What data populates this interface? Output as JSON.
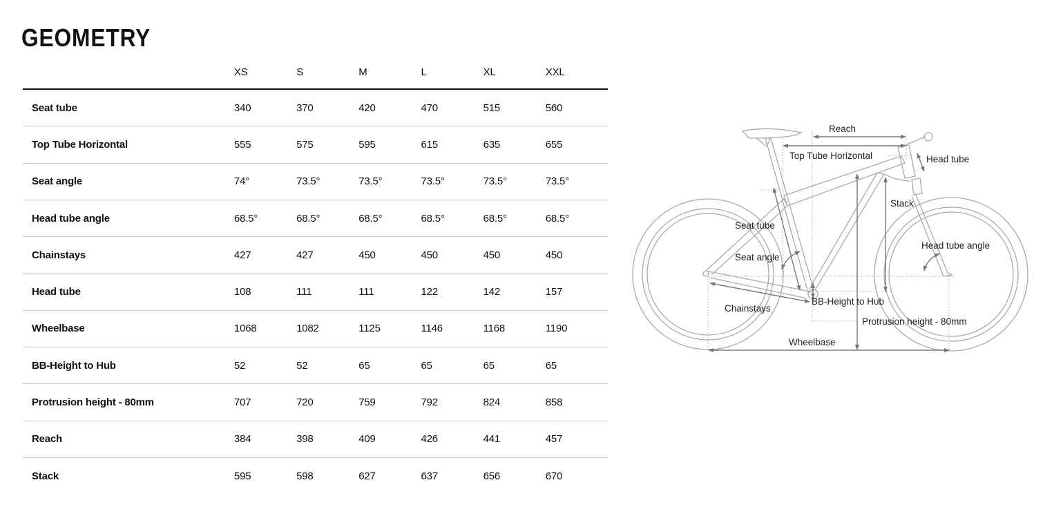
{
  "title": "GEOMETRY",
  "sizes": [
    "XS",
    "S",
    "M",
    "L",
    "XL",
    "XXL"
  ],
  "rows": [
    {
      "label": "Seat tube",
      "values": [
        "340",
        "370",
        "420",
        "470",
        "515",
        "560"
      ]
    },
    {
      "label": "Top Tube Horizontal",
      "values": [
        "555",
        "575",
        "595",
        "615",
        "635",
        "655"
      ]
    },
    {
      "label": "Seat angle",
      "values": [
        "74°",
        "73.5°",
        "73.5°",
        "73.5°",
        "73.5°",
        "73.5°"
      ]
    },
    {
      "label": "Head tube angle",
      "values": [
        "68.5°",
        "68.5°",
        "68.5°",
        "68.5°",
        "68.5°",
        "68.5°"
      ]
    },
    {
      "label": "Chainstays",
      "values": [
        "427",
        "427",
        "450",
        "450",
        "450",
        "450"
      ]
    },
    {
      "label": "Head tube",
      "values": [
        "108",
        "111",
        "111",
        "122",
        "142",
        "157"
      ]
    },
    {
      "label": "Wheelbase",
      "values": [
        "1068",
        "1082",
        "1125",
        "1146",
        "1168",
        "1190"
      ]
    },
    {
      "label": "BB-Height to Hub",
      "values": [
        "52",
        "52",
        "65",
        "65",
        "65",
        "65"
      ]
    },
    {
      "label": "Protrusion height - 80mm",
      "values": [
        "707",
        "720",
        "759",
        "792",
        "824",
        "858"
      ]
    },
    {
      "label": "Reach",
      "values": [
        "384",
        "398",
        "409",
        "426",
        "441",
        "457"
      ]
    },
    {
      "label": "Stack",
      "values": [
        "595",
        "598",
        "627",
        "637",
        "656",
        "670"
      ]
    }
  ],
  "diagram": {
    "reach": "Reach",
    "top_tube": "Top Tube Horizontal",
    "head_tube": "Head tube",
    "stack": "Stack",
    "seat_tube": "Seat tube",
    "head_tube_angle": "Head tube angle",
    "seat_angle": "Seat angle",
    "chainstays": "Chainstays",
    "bb_height": "BB-Height to Hub",
    "protrusion": "Protrusion height - 80mm",
    "wheelbase": "Wheelbase"
  }
}
